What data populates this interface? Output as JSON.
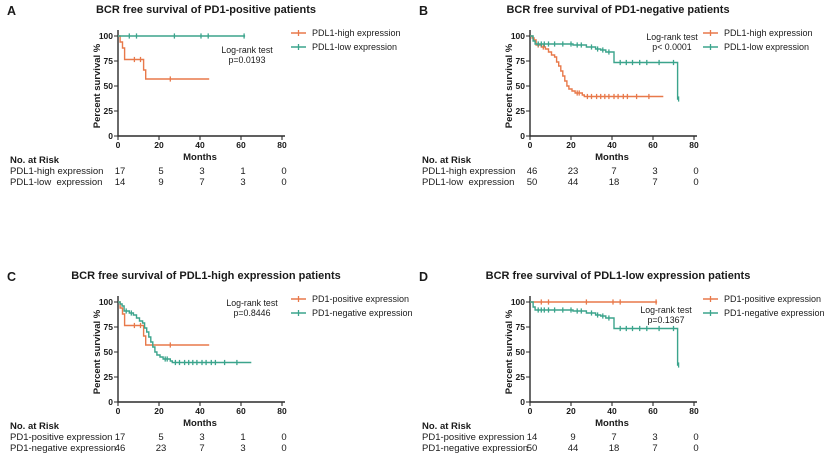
{
  "figure": {
    "background": "#ffffff",
    "text_color": "#1a1a1a",
    "orange": "#E8794A",
    "teal": "#3BA48C"
  },
  "chart_data": [
    {
      "type": "line",
      "subtype": "kaplan-meier-step",
      "panel_letter": "A",
      "title": "BCR free survival of PD1-positive patients",
      "xlabel": "Months",
      "ylabel": "Percent survival %",
      "xlim": [
        0,
        80
      ],
      "ylim": [
        0,
        100
      ],
      "x_ticks": [
        0,
        20,
        40,
        60,
        80
      ],
      "y_ticks": [
        0,
        25,
        50,
        75,
        100
      ],
      "grid": false,
      "legend_position": "right",
      "stat_lines": [
        "Log-rank test",
        "p=0.0193"
      ],
      "series": [
        {
          "name": "PDL1-high expression",
          "color": "#E8794A",
          "steps": [
            [
              0,
              100
            ],
            [
              1,
              94
            ],
            [
              2.2,
              88
            ],
            [
              3.2,
              76.5
            ],
            [
              12.5,
              66
            ],
            [
              13.5,
              57
            ],
            [
              44.5,
              57
            ]
          ],
          "censors": [
            [
              8,
              76.5
            ],
            [
              11,
              76.5
            ],
            [
              25.5,
              57
            ]
          ]
        },
        {
          "name": "PDL1-low expression",
          "color": "#3BA48C",
          "steps": [
            [
              0,
              100
            ],
            [
              62,
              100
            ]
          ],
          "censors": [
            [
              5.5,
              100
            ],
            [
              9,
              100
            ],
            [
              27.5,
              100
            ],
            [
              40.5,
              100
            ],
            [
              44,
              100
            ],
            [
              61.5,
              100
            ]
          ]
        }
      ],
      "risk_table": {
        "title": "No. at Risk",
        "time_points": [
          0,
          20,
          40,
          60,
          80
        ],
        "rows": [
          {
            "label": "PDL1-high expression",
            "counts": [
              17,
              5,
              3,
              1,
              0
            ]
          },
          {
            "label": "PDL1-low  expression",
            "counts": [
              14,
              9,
              7,
              3,
              0
            ]
          }
        ]
      }
    },
    {
      "type": "line",
      "subtype": "kaplan-meier-step",
      "panel_letter": "B",
      "title": "BCR free survival of PD1-negative patients",
      "xlabel": "Months",
      "ylabel": "Percent survival %",
      "xlim": [
        0,
        80
      ],
      "ylim": [
        0,
        100
      ],
      "x_ticks": [
        0,
        20,
        40,
        60,
        80
      ],
      "y_ticks": [
        0,
        25,
        50,
        75,
        100
      ],
      "grid": false,
      "legend_position": "right",
      "stat_lines": [
        "Log-rank test",
        "p< 0.0001"
      ],
      "series": [
        {
          "name": "PDL1-high expression",
          "color": "#E8794A",
          "steps": [
            [
              0,
              100
            ],
            [
              1,
              98
            ],
            [
              2,
              96
            ],
            [
              3,
              91
            ],
            [
              5.5,
              89
            ],
            [
              7.5,
              87
            ],
            [
              9,
              84
            ],
            [
              10.5,
              81
            ],
            [
              12,
              79
            ],
            [
              13,
              74
            ],
            [
              14,
              70
            ],
            [
              15,
              65
            ],
            [
              16,
              60
            ],
            [
              17,
              55
            ],
            [
              18,
              50
            ],
            [
              19,
              47
            ],
            [
              20.5,
              45
            ],
            [
              22,
              43
            ],
            [
              25.5,
              41
            ],
            [
              26.5,
              39.5
            ],
            [
              65,
              39.5
            ]
          ],
          "censors": [
            [
              4,
              91
            ],
            [
              6.5,
              89
            ],
            [
              23,
              43
            ],
            [
              24,
              43
            ],
            [
              28,
              39.5
            ],
            [
              30,
              39.5
            ],
            [
              32.5,
              39.5
            ],
            [
              34.5,
              39.5
            ],
            [
              36.5,
              39.5
            ],
            [
              38.5,
              39.5
            ],
            [
              41,
              39.5
            ],
            [
              43,
              39.5
            ],
            [
              45.5,
              39.5
            ],
            [
              47.5,
              39.5
            ],
            [
              52,
              39.5
            ],
            [
              58,
              39.5
            ]
          ]
        },
        {
          "name": "PDL1-low expression",
          "color": "#3BA48C",
          "steps": [
            [
              0,
              100
            ],
            [
              1.5,
              95
            ],
            [
              2.5,
              92
            ],
            [
              21,
              91
            ],
            [
              27.5,
              89
            ],
            [
              32,
              87
            ],
            [
              34.5,
              86
            ],
            [
              37,
              84
            ],
            [
              41,
              73.5
            ],
            [
              71.5,
              73.5
            ],
            [
              72,
              37
            ],
            [
              72.5,
              37
            ]
          ],
          "censors": [
            [
              4,
              92
            ],
            [
              5.5,
              92
            ],
            [
              7,
              92
            ],
            [
              9,
              92
            ],
            [
              12,
              92
            ],
            [
              16,
              92
            ],
            [
              20,
              92
            ],
            [
              23,
              91
            ],
            [
              25,
              91
            ],
            [
              30,
              89
            ],
            [
              33,
              87
            ],
            [
              35.5,
              86
            ],
            [
              38.5,
              84
            ],
            [
              44,
              73.5
            ],
            [
              47,
              73.5
            ],
            [
              50,
              73.5
            ],
            [
              53.5,
              73.5
            ],
            [
              57,
              73.5
            ],
            [
              63,
              73.5
            ],
            [
              70,
              73.5
            ],
            [
              72.5,
              37
            ]
          ]
        }
      ],
      "risk_table": {
        "title": "No. at Risk",
        "time_points": [
          0,
          20,
          40,
          60,
          80
        ],
        "rows": [
          {
            "label": "PDL1-high expression",
            "counts": [
              46,
              23,
              7,
              3,
              0
            ]
          },
          {
            "label": "PDL1-low  expression",
            "counts": [
              50,
              44,
              18,
              7,
              0
            ]
          }
        ]
      }
    },
    {
      "type": "line",
      "subtype": "kaplan-meier-step",
      "panel_letter": "C",
      "title": "BCR free survival of PDL1-high expression patients",
      "xlabel": "Months",
      "ylabel": "Percent survival %",
      "xlim": [
        0,
        80
      ],
      "ylim": [
        0,
        100
      ],
      "x_ticks": [
        0,
        20,
        40,
        60,
        80
      ],
      "y_ticks": [
        0,
        25,
        50,
        75,
        100
      ],
      "grid": false,
      "legend_position": "right",
      "stat_lines": [
        "Log-rank test",
        "p=0.8446"
      ],
      "series": [
        {
          "name": "PD1-positive expression",
          "color": "#E8794A",
          "steps": [
            [
              0,
              100
            ],
            [
              1,
              94
            ],
            [
              2.2,
              88
            ],
            [
              3.2,
              76.5
            ],
            [
              12.5,
              66
            ],
            [
              13.5,
              57
            ],
            [
              44.5,
              57
            ]
          ],
          "censors": [
            [
              8,
              76.5
            ],
            [
              11,
              76.5
            ],
            [
              25.5,
              57
            ]
          ]
        },
        {
          "name": "PD1-negative expression",
          "color": "#3BA48C",
          "steps": [
            [
              0,
              100
            ],
            [
              1,
              98
            ],
            [
              2,
              96
            ],
            [
              3,
              91
            ],
            [
              5.5,
              89
            ],
            [
              7.5,
              87
            ],
            [
              9,
              84
            ],
            [
              10.5,
              81
            ],
            [
              12,
              79
            ],
            [
              13,
              74
            ],
            [
              14,
              70
            ],
            [
              15,
              65
            ],
            [
              16,
              60
            ],
            [
              17,
              55
            ],
            [
              18,
              50
            ],
            [
              19,
              47
            ],
            [
              20.5,
              45
            ],
            [
              22,
              43
            ],
            [
              25.5,
              41
            ],
            [
              26.5,
              39.5
            ],
            [
              65,
              39.5
            ]
          ],
          "censors": [
            [
              4,
              91
            ],
            [
              6.5,
              89
            ],
            [
              23,
              43
            ],
            [
              24,
              43
            ],
            [
              28,
              39.5
            ],
            [
              30,
              39.5
            ],
            [
              32.5,
              39.5
            ],
            [
              34.5,
              39.5
            ],
            [
              36.5,
              39.5
            ],
            [
              38.5,
              39.5
            ],
            [
              41,
              39.5
            ],
            [
              43,
              39.5
            ],
            [
              45.5,
              39.5
            ],
            [
              47.5,
              39.5
            ],
            [
              52,
              39.5
            ],
            [
              58,
              39.5
            ]
          ]
        }
      ],
      "risk_table": {
        "title": "No. at Risk",
        "time_points": [
          0,
          20,
          40,
          60,
          80
        ],
        "rows": [
          {
            "label": "PD1-positive expression",
            "counts": [
              17,
              5,
              3,
              1,
              0
            ]
          },
          {
            "label": "PD1-negative expression",
            "counts": [
              46,
              23,
              7,
              3,
              0
            ]
          }
        ]
      }
    },
    {
      "type": "line",
      "subtype": "kaplan-meier-step",
      "panel_letter": "D",
      "title": "BCR free survival of PDL1-low expression patients",
      "xlabel": "Months",
      "ylabel": "Percent survival %",
      "xlim": [
        0,
        80
      ],
      "ylim": [
        0,
        100
      ],
      "x_ticks": [
        0,
        20,
        40,
        60,
        80
      ],
      "y_ticks": [
        0,
        25,
        50,
        75,
        100
      ],
      "grid": false,
      "legend_position": "right",
      "stat_lines": [
        "Log-rank test",
        "p=0.1367"
      ],
      "series": [
        {
          "name": "PD1-positive expression",
          "color": "#E8794A",
          "steps": [
            [
              0,
              100
            ],
            [
              62,
              100
            ]
          ],
          "censors": [
            [
              5.5,
              100
            ],
            [
              9,
              100
            ],
            [
              27.5,
              100
            ],
            [
              40.5,
              100
            ],
            [
              44,
              100
            ],
            [
              61.5,
              100
            ]
          ]
        },
        {
          "name": "PD1-negative expression",
          "color": "#3BA48C",
          "steps": [
            [
              0,
              100
            ],
            [
              1.5,
              95
            ],
            [
              2.5,
              92
            ],
            [
              21,
              91
            ],
            [
              27.5,
              89
            ],
            [
              32,
              87
            ],
            [
              34.5,
              86
            ],
            [
              37,
              84
            ],
            [
              41,
              73.5
            ],
            [
              71.5,
              73.5
            ],
            [
              72,
              37
            ],
            [
              72.5,
              37
            ]
          ],
          "censors": [
            [
              4,
              92
            ],
            [
              5.5,
              92
            ],
            [
              7,
              92
            ],
            [
              9,
              92
            ],
            [
              12,
              92
            ],
            [
              16,
              92
            ],
            [
              20,
              92
            ],
            [
              23,
              91
            ],
            [
              25,
              91
            ],
            [
              30,
              89
            ],
            [
              33,
              87
            ],
            [
              35.5,
              86
            ],
            [
              38.5,
              84
            ],
            [
              44,
              73.5
            ],
            [
              47,
              73.5
            ],
            [
              50,
              73.5
            ],
            [
              53.5,
              73.5
            ],
            [
              57,
              73.5
            ],
            [
              63,
              73.5
            ],
            [
              70,
              73.5
            ],
            [
              72.5,
              37
            ]
          ]
        }
      ],
      "risk_table": {
        "title": "No. at Risk",
        "time_points": [
          0,
          20,
          40,
          60,
          80
        ],
        "rows": [
          {
            "label": "PD1-positive expression",
            "counts": [
              14,
              9,
              7,
              3,
              0
            ]
          },
          {
            "label": "PD1-negative expression",
            "counts": [
              50,
              44,
              18,
              7,
              0
            ]
          }
        ]
      }
    }
  ]
}
